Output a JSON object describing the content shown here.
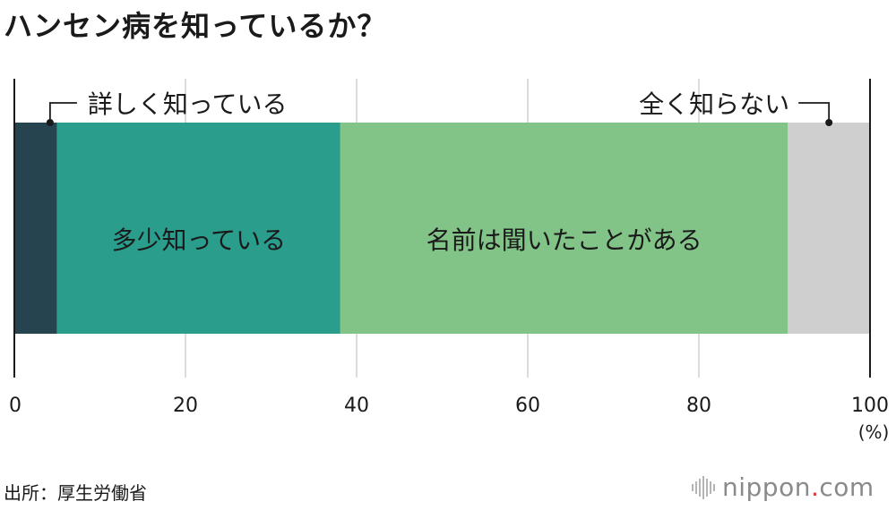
{
  "title": "ハンセン病を知っているか？",
  "source": "出所：厚生労働省",
  "logo": {
    "name": "nippon",
    "dot": ".",
    "tld": "com"
  },
  "chart_data": {
    "type": "bar",
    "orientation": "horizontal-stacked-100",
    "xlim": [
      0,
      100
    ],
    "ticks": [
      "0",
      "20",
      "40",
      "60",
      "80",
      "100"
    ],
    "tick_values": [
      0,
      20,
      40,
      60,
      80,
      100
    ],
    "unit": "(%)",
    "grid": true,
    "segments": [
      {
        "label": "詳しく知っている",
        "value": 5.0,
        "color": "#26444f",
        "label_placement": "callout-left"
      },
      {
        "label": "多少知っている",
        "value": 33.1,
        "color": "#2a9d8c",
        "label_placement": "inside"
      },
      {
        "label": "名前は聞いたことがある",
        "value": 52.3,
        "color": "#82c487",
        "label_placement": "inside"
      },
      {
        "label": "全く知らない",
        "value": 9.6,
        "color": "#cfcfcf",
        "label_placement": "callout-right"
      }
    ]
  }
}
